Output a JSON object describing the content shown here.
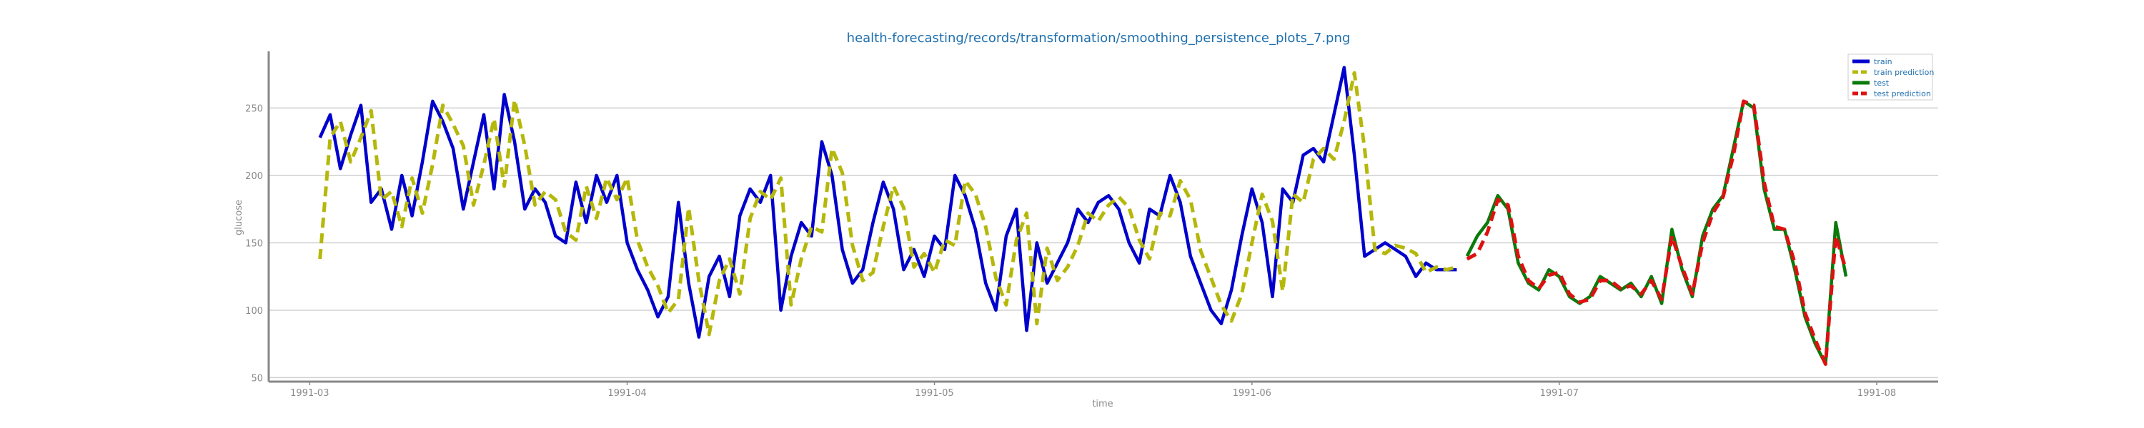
{
  "chart_data": {
    "type": "line",
    "title": "health-forecasting/records/transformation/smoothing_persistence_plots_7.png",
    "xlabel": "time",
    "ylabel": "glucose",
    "xlim": [
      "1991-02-25",
      "1991-08-07"
    ],
    "ylim": [
      47,
      292
    ],
    "grid": "horizontal",
    "legend_position": "top-right",
    "x_ticks": [
      "1991-03",
      "1991-04",
      "1991-05",
      "1991-06",
      "1991-07",
      "1991-08"
    ],
    "y_ticks": [
      50,
      100,
      150,
      200,
      250
    ],
    "series": [
      {
        "name": "train",
        "color": "#0000cc",
        "style": "solid",
        "x": [
          "1991-03-02",
          "1991-03-03",
          "1991-03-04",
          "1991-03-05",
          "1991-03-06",
          "1991-03-07",
          "1991-03-08",
          "1991-03-09",
          "1991-03-10",
          "1991-03-11",
          "1991-03-12",
          "1991-03-13",
          "1991-03-14",
          "1991-03-15",
          "1991-03-16",
          "1991-03-17",
          "1991-03-18",
          "1991-03-19",
          "1991-03-20",
          "1991-03-21",
          "1991-03-22",
          "1991-03-23",
          "1991-03-24",
          "1991-03-25",
          "1991-03-26",
          "1991-03-27",
          "1991-03-28",
          "1991-03-29",
          "1991-03-30",
          "1991-03-31",
          "1991-04-01",
          "1991-04-02",
          "1991-04-03",
          "1991-04-04",
          "1991-04-05",
          "1991-04-06",
          "1991-04-07",
          "1991-04-08",
          "1991-04-09",
          "1991-04-10",
          "1991-04-11",
          "1991-04-12",
          "1991-04-13",
          "1991-04-14",
          "1991-04-15",
          "1991-04-16",
          "1991-04-17",
          "1991-04-18",
          "1991-04-19",
          "1991-04-20",
          "1991-04-21",
          "1991-04-22",
          "1991-04-23",
          "1991-04-24",
          "1991-04-25",
          "1991-04-26",
          "1991-04-27",
          "1991-04-28",
          "1991-04-29",
          "1991-04-30",
          "1991-05-01",
          "1991-05-02",
          "1991-05-03",
          "1991-05-04",
          "1991-05-05",
          "1991-05-06",
          "1991-05-07",
          "1991-05-08",
          "1991-05-09",
          "1991-05-10",
          "1991-05-11",
          "1991-05-12",
          "1991-05-13",
          "1991-05-14",
          "1991-05-15",
          "1991-05-16",
          "1991-05-17",
          "1991-05-18",
          "1991-05-19",
          "1991-05-20",
          "1991-05-21",
          "1991-05-22",
          "1991-05-23",
          "1991-05-24",
          "1991-05-25",
          "1991-05-26",
          "1991-05-27",
          "1991-05-28",
          "1991-05-29",
          "1991-05-30",
          "1991-05-31",
          "1991-06-01",
          "1991-06-02",
          "1991-06-03",
          "1991-06-04",
          "1991-06-05",
          "1991-06-06",
          "1991-06-07",
          "1991-06-08",
          "1991-06-09",
          "1991-06-10",
          "1991-06-11",
          "1991-06-12",
          "1991-06-13",
          "1991-06-14",
          "1991-06-15",
          "1991-06-16",
          "1991-06-17",
          "1991-06-18",
          "1991-06-19",
          "1991-06-20",
          "1991-06-21"
        ],
        "values": [
          228,
          245,
          205,
          230,
          252,
          180,
          190,
          160,
          200,
          170,
          210,
          255,
          240,
          220,
          175,
          210,
          245,
          190,
          260,
          225,
          175,
          190,
          180,
          155,
          150,
          195,
          165,
          200,
          180,
          200,
          150,
          130,
          115,
          95,
          110,
          180,
          120,
          80,
          125,
          140,
          110,
          170,
          190,
          180,
          200,
          100,
          140,
          165,
          155,
          225,
          200,
          145,
          120,
          130,
          165,
          195,
          175,
          130,
          145,
          125,
          155,
          145,
          200,
          185,
          160,
          120,
          100,
          155,
          175,
          85,
          150,
          120,
          135,
          150,
          175,
          165,
          180,
          185,
          175,
          150,
          135,
          175,
          170,
          200,
          180,
          140,
          120,
          100,
          90,
          115,
          155,
          190,
          165,
          110,
          190,
          180,
          215,
          220,
          210,
          245,
          280,
          215,
          140,
          145,
          150,
          145,
          140,
          125,
          135,
          130,
          130,
          130
        ],
        "x_aux": []
      },
      {
        "name": "train prediction",
        "color": "#b5b80a",
        "style": "dashed",
        "x": [
          "1991-03-02",
          "1991-03-03",
          "1991-03-04",
          "1991-03-05",
          "1991-03-06",
          "1991-03-07",
          "1991-03-08",
          "1991-03-09",
          "1991-03-10",
          "1991-03-11",
          "1991-03-12",
          "1991-03-13",
          "1991-03-14",
          "1991-03-15",
          "1991-03-16",
          "1991-03-17",
          "1991-03-18",
          "1991-03-19",
          "1991-03-20",
          "1991-03-21",
          "1991-03-22",
          "1991-03-23",
          "1991-03-24",
          "1991-03-25",
          "1991-03-26",
          "1991-03-27",
          "1991-03-28",
          "1991-03-29",
          "1991-03-30",
          "1991-03-31",
          "1991-04-01",
          "1991-04-02",
          "1991-04-03",
          "1991-04-04",
          "1991-04-05",
          "1991-04-06",
          "1991-04-07",
          "1991-04-08",
          "1991-04-09",
          "1991-04-10",
          "1991-04-11",
          "1991-04-12",
          "1991-04-13",
          "1991-04-14",
          "1991-04-15",
          "1991-04-16",
          "1991-04-17",
          "1991-04-18",
          "1991-04-19",
          "1991-04-20",
          "1991-04-21",
          "1991-04-22",
          "1991-04-23",
          "1991-04-24",
          "1991-04-25",
          "1991-04-26",
          "1991-04-27",
          "1991-04-28",
          "1991-04-29",
          "1991-04-30",
          "1991-05-01",
          "1991-05-02",
          "1991-05-03",
          "1991-05-04",
          "1991-05-05",
          "1991-05-06",
          "1991-05-07",
          "1991-05-08",
          "1991-05-09",
          "1991-05-10",
          "1991-05-11",
          "1991-05-12",
          "1991-05-13",
          "1991-05-14",
          "1991-05-15",
          "1991-05-16",
          "1991-05-17",
          "1991-05-18",
          "1991-05-19",
          "1991-05-20",
          "1991-05-21",
          "1991-05-22",
          "1991-05-23",
          "1991-05-24",
          "1991-05-25",
          "1991-05-26",
          "1991-05-27",
          "1991-05-28",
          "1991-05-29",
          "1991-05-30",
          "1991-05-31",
          "1991-06-01",
          "1991-06-02",
          "1991-06-03",
          "1991-06-04",
          "1991-06-05",
          "1991-06-06",
          "1991-06-07",
          "1991-06-08",
          "1991-06-09",
          "1991-06-10",
          "1991-06-11",
          "1991-06-12",
          "1991-06-13",
          "1991-06-14",
          "1991-06-15",
          "1991-06-16",
          "1991-06-17",
          "1991-06-18",
          "1991-06-19",
          "1991-06-20",
          "1991-06-21"
        ],
        "values": [
          138,
          228,
          240,
          210,
          228,
          248,
          182,
          188,
          162,
          198,
          172,
          208,
          252,
          238,
          222,
          178,
          208,
          242,
          192,
          256,
          222,
          178,
          188,
          182,
          158,
          152,
          192,
          168,
          198,
          182,
          198,
          152,
          132,
          118,
          98,
          108,
          176,
          122,
          82,
          122,
          138,
          112,
          168,
          188,
          182,
          198,
          104,
          138,
          162,
          158,
          220,
          202,
          148,
          122,
          128,
          162,
          192,
          176,
          132,
          142,
          128,
          152,
          148,
          196,
          186,
          162,
          124,
          104,
          152,
          172,
          90,
          146,
          122,
          132,
          148,
          172,
          166,
          178,
          184,
          176,
          152,
          138,
          172,
          170,
          196,
          182,
          144,
          124,
          104,
          92,
          112,
          150,
          186,
          166,
          114,
          186,
          180,
          212,
          220,
          212,
          240,
          276,
          220,
          145,
          142,
          148,
          146,
          142,
          128,
          132,
          130,
          132
        ]
      },
      {
        "name": "test",
        "color": "#0a7a0a",
        "style": "solid",
        "x": [
          "1991-06-22",
          "1991-06-23",
          "1991-06-24",
          "1991-06-25",
          "1991-06-26",
          "1991-06-27",
          "1991-06-28",
          "1991-06-29",
          "1991-06-30",
          "1991-07-01",
          "1991-07-02",
          "1991-07-03",
          "1991-07-04",
          "1991-07-05",
          "1991-07-06",
          "1991-07-07",
          "1991-07-08",
          "1991-07-09",
          "1991-07-10",
          "1991-07-11",
          "1991-07-12",
          "1991-07-13",
          "1991-07-14",
          "1991-07-15",
          "1991-07-16",
          "1991-07-17",
          "1991-07-18",
          "1991-07-19",
          "1991-07-20",
          "1991-07-21",
          "1991-07-22",
          "1991-07-23",
          "1991-07-24",
          "1991-07-25",
          "1991-07-26",
          "1991-07-27",
          "1991-07-28",
          "1991-07-29"
        ],
        "values": [
          140,
          155,
          165,
          185,
          175,
          135,
          120,
          115,
          130,
          125,
          110,
          105,
          110,
          125,
          120,
          115,
          120,
          110,
          125,
          105,
          160,
          130,
          110,
          155,
          175,
          185,
          220,
          255,
          250,
          190,
          160,
          160,
          130,
          95,
          75,
          60,
          165,
          125
        ],
        "x_aux": []
      },
      {
        "name": "test prediction",
        "color": "#dd1111",
        "style": "dashed",
        "x": [
          "1991-06-22",
          "1991-06-23",
          "1991-06-24",
          "1991-06-25",
          "1991-06-26",
          "1991-06-27",
          "1991-06-28",
          "1991-06-29",
          "1991-06-30",
          "1991-07-01",
          "1991-07-02",
          "1991-07-03",
          "1991-07-04",
          "1991-07-05",
          "1991-07-06",
          "1991-07-07",
          "1991-07-08",
          "1991-07-09",
          "1991-07-10",
          "1991-07-11",
          "1991-07-12",
          "1991-07-13",
          "1991-07-14",
          "1991-07-15",
          "1991-07-16",
          "1991-07-17",
          "1991-07-18",
          "1991-07-19",
          "1991-07-20",
          "1991-07-21",
          "1991-07-22",
          "1991-07-23",
          "1991-07-24",
          "1991-07-25",
          "1991-07-26",
          "1991-07-27",
          "1991-07-28",
          "1991-07-29"
        ],
        "values": [
          138,
          142,
          158,
          182,
          178,
          140,
          122,
          116,
          126,
          128,
          112,
          106,
          108,
          122,
          122,
          116,
          118,
          112,
          122,
          108,
          155,
          132,
          112,
          150,
          172,
          184,
          215,
          255,
          252,
          195,
          162,
          160,
          135,
          98,
          78,
          60,
          155,
          130
        ]
      }
    ]
  }
}
